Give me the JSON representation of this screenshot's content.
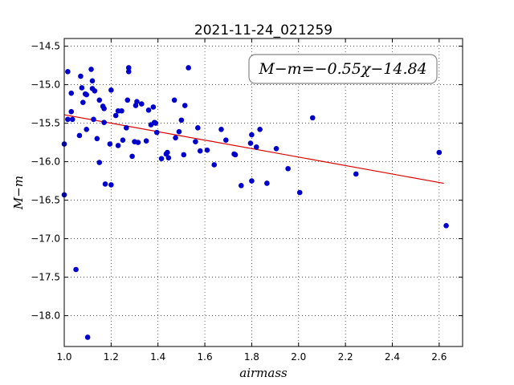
{
  "chart_data": {
    "type": "scatter",
    "title": "2021-11-24_021259",
    "xlabel": "airmass",
    "ylabel": "M−m",
    "xlim": [
      1.0,
      2.7
    ],
    "ylim": [
      -18.4,
      -14.4
    ],
    "y_inverted": true,
    "grid": true,
    "grid_style": "dotted",
    "x_ticks": [
      "1.0",
      "1.2",
      "1.4",
      "1.6",
      "1.8",
      "2.0",
      "2.2",
      "2.4",
      "2.6"
    ],
    "y_ticks": [
      "−14.5",
      "−15.0",
      "−15.5",
      "−16.0",
      "−16.5",
      "−17.0",
      "−17.5",
      "−18.0"
    ],
    "annotation": "M−m=−0.55χ−14.84",
    "marker_color": "#0000cc",
    "fit_color": "#dd0000",
    "fit": {
      "slope": -0.55,
      "intercept": -14.84,
      "x_range": [
        1.0,
        2.62
      ]
    },
    "points": [
      [
        1.0,
        -15.77
      ],
      [
        1.0,
        -16.43
      ],
      [
        1.015,
        -14.83
      ],
      [
        1.015,
        -15.45
      ],
      [
        1.03,
        -15.11
      ],
      [
        1.03,
        -15.35
      ],
      [
        1.035,
        -15.45
      ],
      [
        1.05,
        -17.4
      ],
      [
        1.065,
        -15.66
      ],
      [
        1.07,
        -14.89
      ],
      [
        1.075,
        -15.04
      ],
      [
        1.08,
        -15.23
      ],
      [
        1.09,
        -15.12
      ],
      [
        1.095,
        -15.13
      ],
      [
        1.095,
        -15.58
      ],
      [
        1.1,
        -18.28
      ],
      [
        1.115,
        -14.8
      ],
      [
        1.12,
        -14.95
      ],
      [
        1.12,
        -15.05
      ],
      [
        1.125,
        -15.45
      ],
      [
        1.13,
        -15.08
      ],
      [
        1.14,
        -15.7
      ],
      [
        1.15,
        -15.2
      ],
      [
        1.15,
        -16.01
      ],
      [
        1.165,
        -15.28
      ],
      [
        1.17,
        -15.49
      ],
      [
        1.17,
        -15.31
      ],
      [
        1.175,
        -16.29
      ],
      [
        1.195,
        -15.77
      ],
      [
        1.2,
        -15.07
      ],
      [
        1.2,
        -16.3
      ],
      [
        1.22,
        -15.4
      ],
      [
        1.23,
        -15.34
      ],
      [
        1.23,
        -15.79
      ],
      [
        1.245,
        -15.34
      ],
      [
        1.25,
        -15.72
      ],
      [
        1.265,
        -15.56
      ],
      [
        1.27,
        -15.2
      ],
      [
        1.275,
        -14.78
      ],
      [
        1.275,
        -14.83
      ],
      [
        1.29,
        -15.93
      ],
      [
        1.3,
        -15.74
      ],
      [
        1.305,
        -15.27
      ],
      [
        1.31,
        -15.22
      ],
      [
        1.315,
        -15.75
      ],
      [
        1.33,
        -15.25
      ],
      [
        1.35,
        -15.73
      ],
      [
        1.36,
        -15.33
      ],
      [
        1.37,
        -15.52
      ],
      [
        1.38,
        -15.29
      ],
      [
        1.385,
        -15.49
      ],
      [
        1.39,
        -15.5
      ],
      [
        1.395,
        -15.62
      ],
      [
        1.415,
        -15.96
      ],
      [
        1.435,
        -15.9
      ],
      [
        1.44,
        -15.88
      ],
      [
        1.445,
        -15.95
      ],
      [
        1.47,
        -15.2
      ],
      [
        1.475,
        -15.69
      ],
      [
        1.49,
        -15.61
      ],
      [
        1.5,
        -15.46
      ],
      [
        1.51,
        -15.91
      ],
      [
        1.515,
        -15.27
      ],
      [
        1.53,
        -14.78
      ],
      [
        1.56,
        -15.74
      ],
      [
        1.57,
        -15.56
      ],
      [
        1.58,
        -15.86
      ],
      [
        1.61,
        -15.85
      ],
      [
        1.64,
        -16.04
      ],
      [
        1.67,
        -15.58
      ],
      [
        1.69,
        -15.72
      ],
      [
        1.725,
        -15.9
      ],
      [
        1.73,
        -15.91
      ],
      [
        1.755,
        -16.31
      ],
      [
        1.795,
        -15.76
      ],
      [
        1.8,
        -15.65
      ],
      [
        1.8,
        -16.25
      ],
      [
        1.82,
        -15.81
      ],
      [
        1.835,
        -15.58
      ],
      [
        1.865,
        -16.28
      ],
      [
        1.905,
        -15.83
      ],
      [
        1.955,
        -16.09
      ],
      [
        2.005,
        -16.4
      ],
      [
        2.06,
        -15.43
      ],
      [
        2.245,
        -16.16
      ],
      [
        2.6,
        -15.88
      ],
      [
        2.63,
        -16.83
      ]
    ]
  }
}
